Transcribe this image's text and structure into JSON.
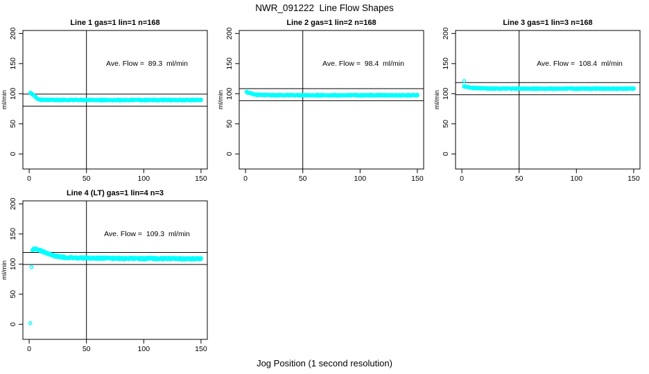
{
  "figure": {
    "title": "NWR_091222  Line Flow Shapes",
    "xlabel": "Jog Position (1 second resolution)",
    "background": "#ffffff",
    "point_color": "#00FFFF",
    "axis_color": "#000000",
    "text_color": "#000000"
  },
  "axes": {
    "xlim": [
      -5.5,
      155.5
    ],
    "ylim": [
      -25,
      205
    ],
    "xticks": [
      0,
      50,
      100,
      150
    ],
    "yticks": [
      0,
      50,
      100,
      150,
      200
    ],
    "ylabel": "ml/min"
  },
  "chart_data": [
    {
      "type": "scatter",
      "panel": 1,
      "title": "Line 1 gas=1 lin=1 n=168",
      "annotation": "Ave. Flow =  89.3  ml/min",
      "ave_flow": 89.3,
      "n": 168,
      "vline_x": 50,
      "hlines": [
        99.3,
        79.3
      ],
      "noise": 0.8,
      "reps": 2,
      "outliers": [],
      "keypoints": [
        [
          1,
          101
        ],
        [
          2,
          100.2
        ],
        [
          3,
          99
        ],
        [
          4,
          97.5
        ],
        [
          5,
          95.5
        ],
        [
          6,
          93.5
        ],
        [
          7,
          92
        ],
        [
          8,
          91
        ],
        [
          9,
          90.4
        ],
        [
          10,
          90
        ],
        [
          12,
          89.8
        ],
        [
          15,
          89.7
        ],
        [
          20,
          89.7
        ],
        [
          30,
          89.6
        ],
        [
          50,
          89.6
        ],
        [
          80,
          89.5
        ],
        [
          120,
          89.5
        ],
        [
          150,
          89.6
        ]
      ]
    },
    {
      "type": "scatter",
      "panel": 2,
      "title": "Line 2 gas=1 lin=2 n=168",
      "annotation": "Ave. Flow =  98.4  ml/min",
      "ave_flow": 98.4,
      "n": 168,
      "vline_x": 50,
      "hlines": [
        108.4,
        88.4
      ],
      "noise": 0.8,
      "reps": 2,
      "outliers": [],
      "keypoints": [
        [
          1,
          102.5
        ],
        [
          2,
          102.2
        ],
        [
          3,
          101.8
        ],
        [
          4,
          101.2
        ],
        [
          5,
          100.5
        ],
        [
          6,
          99.8
        ],
        [
          7,
          99.2
        ],
        [
          8,
          98.8
        ],
        [
          10,
          98.3
        ],
        [
          12,
          98
        ],
        [
          15,
          97.8
        ],
        [
          20,
          97.7
        ],
        [
          30,
          97.6
        ],
        [
          50,
          97.5
        ],
        [
          80,
          97.5
        ],
        [
          120,
          97.4
        ],
        [
          150,
          97.5
        ]
      ]
    },
    {
      "type": "scatter",
      "panel": 3,
      "title": "Line 3 gas=1 lin=3 n=168",
      "annotation": "Ave. Flow =  108.4  ml/min",
      "ave_flow": 108.4,
      "n": 168,
      "vline_x": 50,
      "hlines": [
        118.4,
        98.4
      ],
      "noise": 0.8,
      "reps": 2,
      "outliers": [
        [
          2,
          121
        ]
      ],
      "keypoints": [
        [
          2,
          112.5
        ],
        [
          3,
          112
        ],
        [
          4,
          111.4
        ],
        [
          5,
          111
        ],
        [
          6,
          110.6
        ],
        [
          8,
          110
        ],
        [
          10,
          109.6
        ],
        [
          12,
          109.3
        ],
        [
          15,
          109
        ],
        [
          20,
          108.8
        ],
        [
          30,
          108.6
        ],
        [
          50,
          108.5
        ],
        [
          80,
          108.5
        ],
        [
          120,
          108.4
        ],
        [
          150,
          108.5
        ]
      ]
    },
    {
      "type": "scatter",
      "panel": 4,
      "title": "Line 4 (LT) gas=1 lin=4 n=3",
      "annotation": "Ave. Flow =  109.3  ml/min",
      "ave_flow": 109.3,
      "n": 3,
      "vline_x": 50,
      "hlines": [
        119.3,
        99.3
      ],
      "noise": 1.4,
      "reps": 3,
      "outliers": [
        [
          1,
          2
        ],
        [
          2,
          95
        ]
      ],
      "keypoints": [
        [
          3,
          123.5
        ],
        [
          4,
          124.5
        ],
        [
          5,
          125
        ],
        [
          6,
          125
        ],
        [
          7,
          124.5
        ],
        [
          8,
          124
        ],
        [
          9,
          123.2
        ],
        [
          10,
          122.3
        ],
        [
          12,
          120.5
        ],
        [
          14,
          118.8
        ],
        [
          16,
          117.3
        ],
        [
          18,
          116
        ],
        [
          20,
          114.8
        ],
        [
          22,
          113.8
        ],
        [
          25,
          112.6
        ],
        [
          28,
          111.8
        ],
        [
          32,
          111
        ],
        [
          36,
          110.5
        ],
        [
          40,
          110.2
        ],
        [
          45,
          110.2
        ],
        [
          50,
          110.1
        ],
        [
          55,
          109.9
        ],
        [
          60,
          109.6
        ],
        [
          65,
          110
        ],
        [
          70,
          109.9
        ],
        [
          75,
          109.4
        ],
        [
          80,
          109.6
        ],
        [
          85,
          109.2
        ],
        [
          90,
          109.6
        ],
        [
          95,
          109.2
        ],
        [
          100,
          109.1
        ],
        [
          105,
          109.4
        ],
        [
          110,
          109.2
        ],
        [
          115,
          109
        ],
        [
          120,
          109.1
        ],
        [
          125,
          109.4
        ],
        [
          130,
          109.3
        ],
        [
          135,
          108.9
        ],
        [
          140,
          108.9
        ],
        [
          145,
          108.8
        ],
        [
          150,
          108.9
        ]
      ]
    }
  ]
}
